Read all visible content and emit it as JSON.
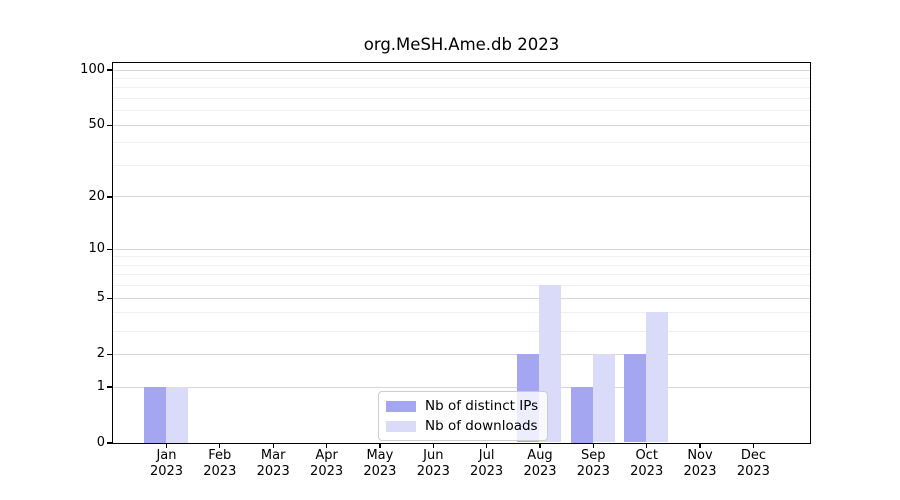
{
  "chart_data": {
    "type": "bar",
    "title": "org.MeSH.Ame.db 2023",
    "categories": [
      "Jan",
      "Feb",
      "Mar",
      "Apr",
      "May",
      "Jun",
      "Jul",
      "Aug",
      "Sep",
      "Oct",
      "Nov",
      "Dec"
    ],
    "category_year": "2023",
    "series": [
      {
        "name": "Nb of distinct IPs",
        "color": "#a4a6f2",
        "values": [
          1,
          0,
          0,
          0,
          0,
          0,
          0,
          2,
          1,
          2,
          0,
          0
        ]
      },
      {
        "name": "Nb of downloads",
        "color": "#d9dbf8",
        "values": [
          1,
          0,
          0,
          0,
          0,
          0,
          0,
          6,
          2,
          4,
          0,
          0
        ]
      }
    ],
    "yscale": "log1p",
    "ylim": [
      0,
      109
    ],
    "yticks": [
      0,
      1,
      2,
      5,
      10,
      20,
      50,
      100
    ],
    "minor_yticks": [
      3,
      4,
      6,
      7,
      8,
      9,
      30,
      40,
      60,
      70,
      80,
      90
    ],
    "grid": true,
    "legend_position": "lower center",
    "colors": {
      "axis": "#000000",
      "major_grid": "#d6d6d6",
      "minor_grid": "#efefef",
      "background": "#ffffff"
    }
  }
}
